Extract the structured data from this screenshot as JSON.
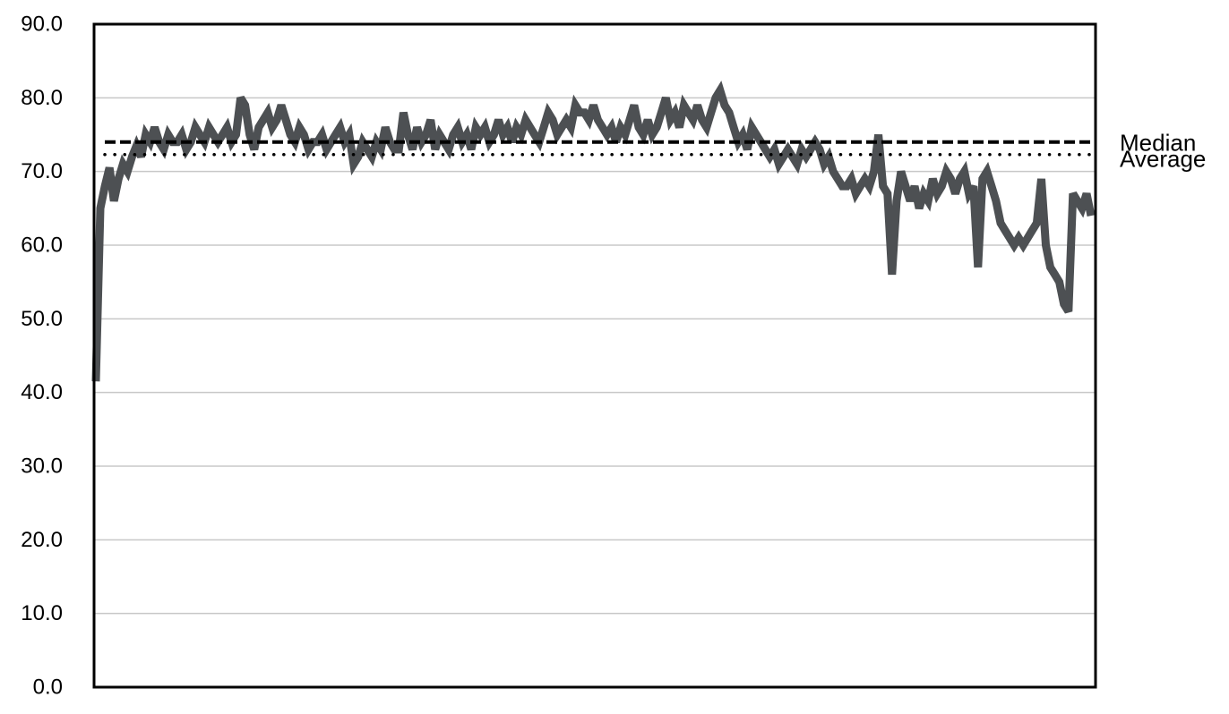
{
  "chart_data": {
    "type": "line",
    "title": "",
    "xlabel": "",
    "ylabel": "",
    "ylim": [
      0,
      90
    ],
    "y_ticks": [
      "0.0",
      "10.0",
      "20.0",
      "30.0",
      "40.0",
      "50.0",
      "60.0",
      "70.0",
      "80.0",
      "90.0"
    ],
    "grid": "horizontal",
    "x_tick_labels": "none",
    "series": [
      {
        "color": "#4d5053",
        "values": [
          41.5,
          65,
          68,
          70.5,
          66,
          69,
          71,
          70,
          72,
          73.5,
          72,
          75,
          74,
          76,
          74,
          73,
          75,
          74,
          74,
          75,
          73,
          74,
          76,
          75,
          74,
          76,
          75,
          74,
          75,
          76,
          74,
          75,
          80,
          79,
          75,
          73,
          76,
          77,
          78,
          76,
          77,
          79,
          77,
          75,
          74,
          76,
          75,
          73,
          74,
          74,
          75,
          73,
          74,
          75,
          76,
          74,
          75,
          71,
          72,
          74,
          73,
          72,
          74,
          73,
          76,
          74,
          73,
          73,
          78,
          75,
          73,
          76,
          74,
          75,
          77,
          73,
          75,
          74,
          73,
          75,
          76,
          74,
          75,
          73,
          76,
          75,
          76,
          74,
          75,
          77,
          75,
          76,
          74,
          76,
          75,
          77,
          76,
          75,
          74,
          76,
          78,
          77,
          75,
          76,
          77,
          76,
          79,
          78,
          78,
          77,
          79,
          77,
          76,
          75,
          76,
          74,
          76,
          75,
          77,
          79,
          76,
          75,
          77,
          75,
          76,
          78,
          80,
          77,
          78,
          76,
          79,
          78,
          77,
          79,
          77,
          76,
          78,
          80,
          81,
          79,
          78,
          76,
          74,
          75,
          73,
          76,
          75,
          74,
          73,
          72,
          73,
          71,
          72,
          73,
          72,
          71,
          73,
          72,
          73,
          74,
          73,
          71,
          72,
          70,
          69,
          68,
          68,
          69,
          67,
          68,
          69,
          68,
          70,
          75,
          68,
          67,
          56,
          66,
          70,
          68,
          66,
          68,
          65,
          67,
          66,
          69,
          67,
          68,
          70,
          69,
          67,
          69,
          70,
          67,
          68,
          57,
          69,
          70,
          68,
          66,
          63,
          62,
          61,
          60,
          61,
          60,
          61,
          62,
          63,
          69,
          60,
          57,
          56,
          55,
          52,
          51,
          67,
          66,
          65,
          67,
          64
        ]
      }
    ],
    "reference_lines": [
      {
        "label": "Median",
        "value": 74.0,
        "style": "dashed",
        "color": "#000000"
      },
      {
        "label": "Average",
        "value": 72.3,
        "style": "dotted",
        "color": "#000000"
      }
    ]
  }
}
